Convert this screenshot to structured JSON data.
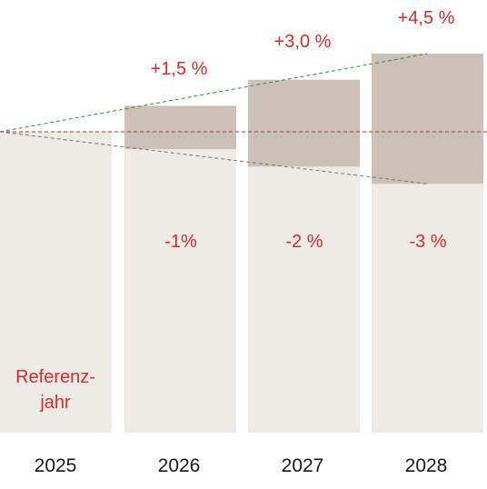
{
  "chart_data": {
    "type": "bar",
    "title": "",
    "xlabel": "",
    "ylabel": "",
    "categories": [
      "2025",
      "2026",
      "2027",
      "2028"
    ],
    "reference_label_lines": [
      "Referenz-",
      "jahr"
    ],
    "reference_value": 0,
    "range_low": [
      0,
      -1,
      -2,
      -3
    ],
    "range_high": [
      0,
      1.5,
      3.0,
      4.5
    ],
    "upper_labels": [
      "",
      "+1,5 %",
      "+3,0 %",
      "+4,5 %"
    ],
    "lower_labels": [
      "",
      "-1%",
      "-2 %",
      "-3 %"
    ],
    "trend_lines": [
      {
        "from_category": "2025",
        "to_category": "2028",
        "from_value": 0,
        "to_value": 4.5,
        "style": "dashed",
        "color": "#2e8b3a"
      },
      {
        "from_category": "2025",
        "to_category": "2028",
        "from_value": 0,
        "to_value": 0,
        "style": "dashed",
        "color": "#a33a2a"
      },
      {
        "from_category": "2025",
        "to_category": "2028",
        "from_value": 0,
        "to_value": -3,
        "style": "dashed",
        "color": "#777777"
      }
    ],
    "grid": false,
    "legend": "none"
  },
  "colors": {
    "base_bar": "#eeeae6",
    "range_band": "#cbc1b8",
    "label_red": "#d52b2b",
    "year_text": "#1a1a1a"
  }
}
